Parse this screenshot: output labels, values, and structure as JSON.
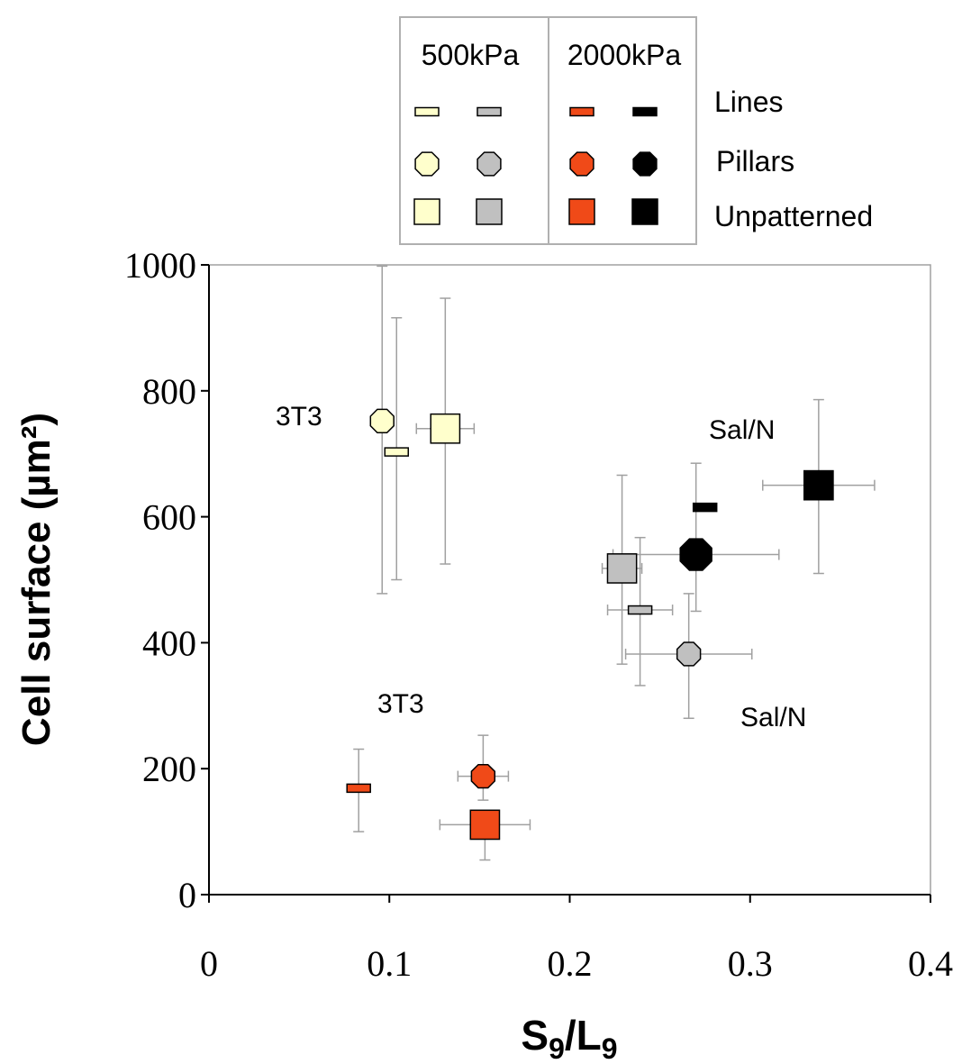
{
  "legend": {
    "headers": [
      "500kPa",
      "2000kPa"
    ],
    "rows": [
      {
        "label": "Lines",
        "symbol": "line"
      },
      {
        "label": "Pillars",
        "symbol": "octagon"
      },
      {
        "label": "Unpatterned",
        "symbol": "square"
      }
    ]
  },
  "annotations": [
    "3T3",
    "Sal/N",
    "3T3",
    "Sal/N"
  ],
  "chart_data": {
    "type": "scatter",
    "xlabel": "S9/L9",
    "xlabel_main": "S",
    "xlabel_sub": "9",
    "xlabel_mid": "/L",
    "xlabel_sub2": "9",
    "ylabel": "Cell surface (µm²)",
    "xlim": [
      0,
      0.4
    ],
    "ylim": [
      0,
      1000
    ],
    "xticks": [
      "0",
      "0.1",
      "0.2",
      "0.3",
      "0.4"
    ],
    "yticks": [
      "0",
      "200",
      "400",
      "600",
      "800",
      "1000"
    ],
    "grid": false,
    "legend_position": "top",
    "colors": {
      "pale_yellow": "#ffffcc",
      "grey": "#c0c0c0",
      "red_orange": "#f04a18",
      "black": "#000000",
      "error_bar": "#a0a0a0"
    },
    "series": [
      {
        "name": "Lines",
        "stiffness": "500kPa",
        "cell": "3T3",
        "color": "#ffffcc",
        "marker": "line",
        "points": [
          {
            "x": 0.104,
            "y": 703,
            "xerr": 0,
            "yerr_low": 203,
            "yerr_high": 213
          }
        ]
      },
      {
        "name": "Pillars",
        "stiffness": "500kPa",
        "cell": "3T3",
        "color": "#ffffcc",
        "marker": "octagon",
        "points": [
          {
            "x": 0.096,
            "y": 752,
            "xerr": 0,
            "yerr_low": 274,
            "yerr_high": 246
          }
        ]
      },
      {
        "name": "Unpatterned",
        "stiffness": "500kPa",
        "cell": "3T3",
        "color": "#ffffcc",
        "marker": "square",
        "points": [
          {
            "x": 0.131,
            "y": 740,
            "xerr": 0.016,
            "yerr_low": 215,
            "yerr_high": 207
          }
        ]
      },
      {
        "name": "Lines",
        "stiffness": "500kPa",
        "cell": "Sal/N",
        "color": "#c0c0c0",
        "marker": "line",
        "points": [
          {
            "x": 0.239,
            "y": 452,
            "xerr": 0.018,
            "yerr_low": 120,
            "yerr_high": 115
          }
        ]
      },
      {
        "name": "Pillars",
        "stiffness": "500kPa",
        "cell": "Sal/N",
        "color": "#c0c0c0",
        "marker": "octagon",
        "points": [
          {
            "x": 0.266,
            "y": 382,
            "xerr": 0.035,
            "yerr_low": 102,
            "yerr_high": 96
          }
        ]
      },
      {
        "name": "Unpatterned",
        "stiffness": "500kPa",
        "cell": "Sal/N",
        "color": "#c0c0c0",
        "marker": "square",
        "points": [
          {
            "x": 0.229,
            "y": 518,
            "xerr": 0.011,
            "yerr_low": 152,
            "yerr_high": 148
          }
        ]
      },
      {
        "name": "Lines",
        "stiffness": "2000kPa",
        "cell": "3T3",
        "color": "#f04a18",
        "marker": "line",
        "points": [
          {
            "x": 0.083,
            "y": 169,
            "xerr": 0,
            "yerr_low": 69,
            "yerr_high": 62
          }
        ]
      },
      {
        "name": "Pillars",
        "stiffness": "2000kPa",
        "cell": "3T3",
        "color": "#f04a18",
        "marker": "octagon",
        "points": [
          {
            "x": 0.152,
            "y": 188,
            "xerr": 0.014,
            "yerr_low": 38,
            "yerr_high": 65
          }
        ]
      },
      {
        "name": "Unpatterned",
        "stiffness": "2000kPa",
        "cell": "3T3",
        "color": "#f04a18",
        "marker": "square",
        "points": [
          {
            "x": 0.153,
            "y": 111,
            "xerr": 0.025,
            "yerr_low": 56,
            "yerr_high": 0
          }
        ]
      },
      {
        "name": "Lines",
        "stiffness": "2000kPa",
        "cell": "Sal/N",
        "color": "#000000",
        "marker": "line",
        "points": [
          {
            "x": 0.275,
            "y": 615,
            "xerr": 0,
            "yerr_low": 0,
            "yerr_high": 0
          }
        ]
      },
      {
        "name": "Pillars",
        "stiffness": "2000kPa",
        "cell": "Sal/N",
        "color": "#000000",
        "marker": "octagon",
        "points": [
          {
            "x": 0.27,
            "y": 540,
            "xerr": 0.046,
            "yerr_low": 90,
            "yerr_high": 145
          }
        ]
      },
      {
        "name": "Unpatterned",
        "stiffness": "2000kPa",
        "cell": "Sal/N",
        "color": "#000000",
        "marker": "square",
        "points": [
          {
            "x": 0.338,
            "y": 650,
            "xerr": 0.031,
            "yerr_low": 140,
            "yerr_high": 136
          }
        ]
      }
    ]
  }
}
